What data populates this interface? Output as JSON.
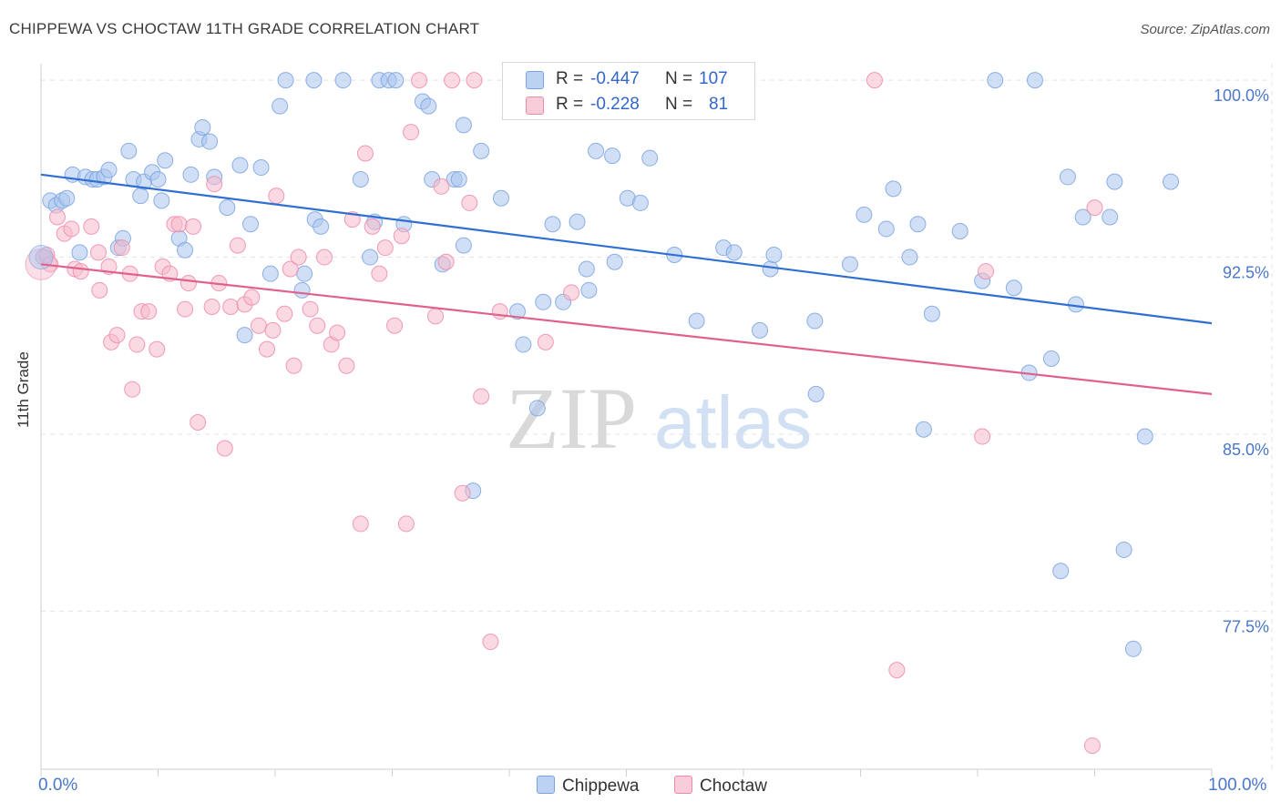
{
  "header": {
    "title": "CHIPPEWA VS CHOCTAW 11TH GRADE CORRELATION CHART",
    "source": "Source: ZipAtlas.com"
  },
  "watermark": {
    "part1": "ZIP",
    "part2": "atlas"
  },
  "legend": {
    "rows": [
      {
        "r_label": "R =",
        "r_value": "-0.447",
        "n_label": "N =",
        "n_value": "107",
        "color": "#a9c4ee"
      },
      {
        "r_label": "R =",
        "r_value": "-0.228",
        "n_label": "N =",
        "n_value": "81",
        "color": "#f6b9cb"
      }
    ]
  },
  "bottom_legend": {
    "items": [
      "Chippewa",
      "Choctaw"
    ]
  },
  "chart_data": {
    "type": "scatter",
    "title": "CHIPPEWA VS CHOCTAW 11TH GRADE CORRELATION CHART",
    "xlabel": "",
    "ylabel": "11th Grade",
    "x_tick_labels": [
      "0.0%",
      "100.0%"
    ],
    "y_tick_labels": [
      "100.0%",
      "92.5%",
      "85.0%",
      "77.5%"
    ],
    "y_ticks": [
      100.0,
      92.5,
      85.0,
      77.5
    ],
    "xlim": [
      0,
      100
    ],
    "ylim": [
      70.8,
      100.7
    ],
    "grid": true,
    "series": [
      {
        "name": "Chippewa",
        "color": "#7aa3e0",
        "fill": "#a9c4ee",
        "line_color": "#2f6fd3",
        "trend": [
          [
            0,
            96.0
          ],
          [
            100,
            89.7
          ]
        ],
        "points": [
          [
            0.2,
            92.5
          ],
          [
            0.8,
            94.9
          ],
          [
            1.3,
            94.7
          ],
          [
            1.8,
            94.9
          ],
          [
            2.2,
            95.0
          ],
          [
            2.7,
            96.0
          ],
          [
            3.3,
            92.7
          ],
          [
            3.8,
            95.9
          ],
          [
            4.4,
            95.8
          ],
          [
            4.8,
            95.8
          ],
          [
            5.4,
            95.9
          ],
          [
            5.8,
            96.2
          ],
          [
            6.6,
            92.9
          ],
          [
            7.0,
            93.3
          ],
          [
            7.5,
            97.0
          ],
          [
            7.9,
            95.8
          ],
          [
            8.5,
            95.1
          ],
          [
            8.8,
            95.7
          ],
          [
            9.5,
            96.1
          ],
          [
            10.0,
            95.8
          ],
          [
            10.3,
            94.9
          ],
          [
            10.6,
            96.6
          ],
          [
            11.8,
            93.3
          ],
          [
            12.3,
            92.8
          ],
          [
            12.8,
            96.0
          ],
          [
            13.5,
            97.5
          ],
          [
            13.8,
            98.0
          ],
          [
            14.4,
            97.4
          ],
          [
            14.8,
            95.9
          ],
          [
            15.9,
            94.6
          ],
          [
            17.0,
            96.4
          ],
          [
            17.4,
            89.2
          ],
          [
            17.9,
            93.9
          ],
          [
            18.8,
            96.3
          ],
          [
            19.6,
            91.8
          ],
          [
            20.4,
            98.9
          ],
          [
            20.9,
            100.0
          ],
          [
            22.3,
            91.1
          ],
          [
            22.5,
            91.8
          ],
          [
            23.4,
            94.1
          ],
          [
            23.3,
            100.0
          ],
          [
            23.9,
            93.8
          ],
          [
            25.8,
            100.0
          ],
          [
            27.3,
            95.8
          ],
          [
            28.1,
            92.5
          ],
          [
            28.5,
            94.0
          ],
          [
            28.9,
            100.0
          ],
          [
            29.7,
            100.0
          ],
          [
            30.3,
            100.0
          ],
          [
            31.0,
            93.9
          ],
          [
            32.6,
            99.1
          ],
          [
            33.1,
            98.9
          ],
          [
            33.4,
            95.8
          ],
          [
            34.3,
            92.2
          ],
          [
            35.3,
            95.8
          ],
          [
            35.7,
            95.8
          ],
          [
            36.1,
            93.0
          ],
          [
            36.1,
            98.1
          ],
          [
            36.9,
            82.6
          ],
          [
            37.6,
            97.0
          ],
          [
            39.3,
            95.0
          ],
          [
            40.7,
            90.2
          ],
          [
            41.2,
            88.8
          ],
          [
            42.4,
            86.1
          ],
          [
            42.9,
            90.6
          ],
          [
            43.7,
            93.9
          ],
          [
            44.6,
            90.6
          ],
          [
            45.8,
            94.0
          ],
          [
            46.6,
            92.0
          ],
          [
            46.8,
            91.1
          ],
          [
            47.4,
            97.0
          ],
          [
            48.8,
            96.8
          ],
          [
            49.0,
            92.3
          ],
          [
            50.1,
            95.0
          ],
          [
            51.2,
            94.8
          ],
          [
            52.0,
            96.7
          ],
          [
            54.1,
            92.6
          ],
          [
            56.0,
            89.8
          ],
          [
            58.3,
            92.9
          ],
          [
            59.2,
            92.7
          ],
          [
            61.4,
            89.4
          ],
          [
            62.3,
            92.0
          ],
          [
            62.6,
            92.6
          ],
          [
            66.1,
            89.8
          ],
          [
            66.2,
            86.7
          ],
          [
            69.1,
            92.2
          ],
          [
            70.3,
            94.3
          ],
          [
            72.2,
            93.7
          ],
          [
            72.8,
            95.4
          ],
          [
            74.2,
            92.5
          ],
          [
            74.9,
            93.9
          ],
          [
            75.4,
            85.2
          ],
          [
            76.1,
            90.1
          ],
          [
            78.5,
            93.6
          ],
          [
            80.4,
            91.5
          ],
          [
            81.5,
            100.0
          ],
          [
            83.1,
            91.2
          ],
          [
            84.4,
            87.6
          ],
          [
            84.9,
            100.0
          ],
          [
            86.3,
            88.2
          ],
          [
            87.1,
            79.2
          ],
          [
            87.7,
            95.9
          ],
          [
            88.4,
            90.5
          ],
          [
            89.0,
            94.2
          ],
          [
            91.3,
            94.2
          ],
          [
            91.7,
            95.7
          ],
          [
            92.5,
            80.1
          ],
          [
            93.3,
            75.9
          ],
          [
            94.3,
            84.9
          ],
          [
            96.5,
            95.7
          ]
        ]
      },
      {
        "name": "Choctaw",
        "color": "#f08aaa",
        "fill": "#f6b9cb",
        "line_color": "#e0628c",
        "trend": [
          [
            0,
            92.2
          ],
          [
            100,
            86.7
          ]
        ],
        "points": [
          [
            0.5,
            92.6
          ],
          [
            0.8,
            92.2
          ],
          [
            1.4,
            94.2
          ],
          [
            2.0,
            93.5
          ],
          [
            2.6,
            93.7
          ],
          [
            2.9,
            92.0
          ],
          [
            3.4,
            91.9
          ],
          [
            4.3,
            93.8
          ],
          [
            4.9,
            92.7
          ],
          [
            5.0,
            91.1
          ],
          [
            5.8,
            92.1
          ],
          [
            6.0,
            88.9
          ],
          [
            6.5,
            89.2
          ],
          [
            6.9,
            92.9
          ],
          [
            7.6,
            91.8
          ],
          [
            7.8,
            86.9
          ],
          [
            8.2,
            88.8
          ],
          [
            8.6,
            90.2
          ],
          [
            9.2,
            90.2
          ],
          [
            9.9,
            88.6
          ],
          [
            10.4,
            92.1
          ],
          [
            11.0,
            91.8
          ],
          [
            11.4,
            93.9
          ],
          [
            11.8,
            93.9
          ],
          [
            12.3,
            90.3
          ],
          [
            12.6,
            91.4
          ],
          [
            13.0,
            93.8
          ],
          [
            13.4,
            85.5
          ],
          [
            14.6,
            90.4
          ],
          [
            14.8,
            95.6
          ],
          [
            15.2,
            91.4
          ],
          [
            15.7,
            84.4
          ],
          [
            16.2,
            90.4
          ],
          [
            16.8,
            93.0
          ],
          [
            17.4,
            90.5
          ],
          [
            18.0,
            90.8
          ],
          [
            18.6,
            89.6
          ],
          [
            19.3,
            88.6
          ],
          [
            19.8,
            89.4
          ],
          [
            20.1,
            95.1
          ],
          [
            20.8,
            90.1
          ],
          [
            21.3,
            92.0
          ],
          [
            21.6,
            87.9
          ],
          [
            22.0,
            92.5
          ],
          [
            23.0,
            90.3
          ],
          [
            23.6,
            89.6
          ],
          [
            24.2,
            92.5
          ],
          [
            24.8,
            88.8
          ],
          [
            25.3,
            89.3
          ],
          [
            26.1,
            87.9
          ],
          [
            26.6,
            94.1
          ],
          [
            27.3,
            81.2
          ],
          [
            27.7,
            96.9
          ],
          [
            28.3,
            93.8
          ],
          [
            28.9,
            91.8
          ],
          [
            29.4,
            92.9
          ],
          [
            30.2,
            89.6
          ],
          [
            30.8,
            93.4
          ],
          [
            31.2,
            81.2
          ],
          [
            31.6,
            97.8
          ],
          [
            32.3,
            100.0
          ],
          [
            33.7,
            90.0
          ],
          [
            34.2,
            95.5
          ],
          [
            34.6,
            92.3
          ],
          [
            35.1,
            100.0
          ],
          [
            36.0,
            82.5
          ],
          [
            36.6,
            94.8
          ],
          [
            37.0,
            100.0
          ],
          [
            37.6,
            86.6
          ],
          [
            38.4,
            76.2
          ],
          [
            39.2,
            90.2
          ],
          [
            43.1,
            88.9
          ],
          [
            45.3,
            91.0
          ],
          [
            71.2,
            100.0
          ],
          [
            73.1,
            75.0
          ],
          [
            80.4,
            84.9
          ],
          [
            80.7,
            91.9
          ],
          [
            89.8,
            71.8
          ],
          [
            90.0,
            94.6
          ]
        ]
      }
    ]
  }
}
